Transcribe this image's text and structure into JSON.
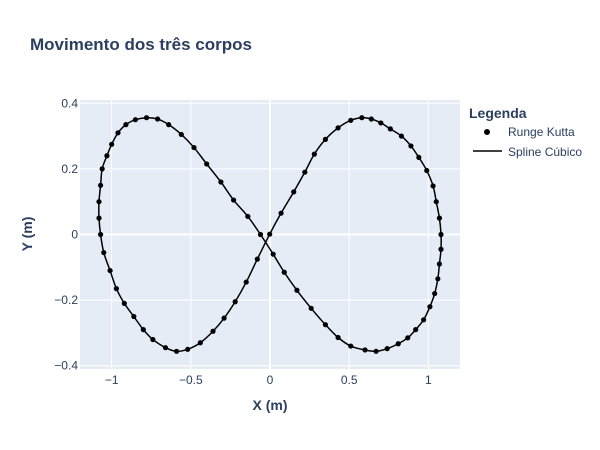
{
  "chart_data": {
    "type": "scatter",
    "title": "Movimento dos três corpos",
    "xlabel": "X (m)",
    "ylabel": "Y (m)",
    "xlim": [
      -1.2,
      1.2
    ],
    "ylim": [
      -0.41,
      0.41
    ],
    "x_ticks": [
      -1,
      -0.5,
      0,
      0.5,
      1
    ],
    "x_tick_labels": [
      "−1",
      "−0.5",
      "0",
      "0.5",
      "1"
    ],
    "y_ticks": [
      -0.4,
      -0.2,
      0,
      0.2,
      0.4
    ],
    "y_tick_labels": [
      "−0.4",
      "−0.2",
      "0",
      "0.2",
      "0.4"
    ],
    "grid": true,
    "legend": {
      "title": "Legenda",
      "placement": "top-right-outside",
      "entries": [
        "Runge Kutta",
        "Spline Cúbico"
      ]
    },
    "colors": {
      "plot_bg": "#e5ecf6",
      "grid": "#ffffff",
      "text": "#2a3f5f",
      "series": "#000000"
    },
    "series": [
      {
        "name": "Runge Kutta",
        "mode": "markers",
        "x": [
          -0.002,
          0.07,
          0.15,
          0.22,
          0.28,
          0.35,
          0.43,
          0.51,
          0.58,
          0.64,
          0.7,
          0.76,
          0.83,
          0.89,
          0.94,
          0.99,
          1.03,
          1.05,
          1.07,
          1.08,
          1.08,
          1.07,
          1.06,
          1.04,
          1.01,
          0.97,
          0.92,
          0.87,
          0.81,
          0.74,
          0.67,
          0.6,
          0.51,
          0.43,
          0.35,
          0.26,
          0.17,
          0.09,
          0.02,
          -0.06,
          -0.14,
          -0.23,
          -0.31,
          -0.4,
          -0.48,
          -0.56,
          -0.64,
          -0.71,
          -0.78,
          -0.85,
          -0.91,
          -0.96,
          -1.0,
          -1.03,
          -1.06,
          -1.07,
          -1.08,
          -1.08,
          -1.07,
          -1.05,
          -1.01,
          -0.97,
          -0.92,
          -0.86,
          -0.8,
          -0.74,
          -0.66,
          -0.59,
          -0.52,
          -0.44,
          -0.36,
          -0.29,
          -0.22,
          -0.15,
          -0.08
        ],
        "y": [
          0.001,
          0.065,
          0.13,
          0.19,
          0.245,
          0.29,
          0.325,
          0.348,
          0.356,
          0.352,
          0.34,
          0.322,
          0.3,
          0.27,
          0.235,
          0.195,
          0.148,
          0.1,
          0.05,
          0.0,
          -0.045,
          -0.09,
          -0.135,
          -0.18,
          -0.22,
          -0.26,
          -0.29,
          -0.315,
          -0.333,
          -0.348,
          -0.356,
          -0.352,
          -0.34,
          -0.314,
          -0.275,
          -0.225,
          -0.17,
          -0.115,
          -0.06,
          0.0,
          0.055,
          0.105,
          0.16,
          0.215,
          0.265,
          0.305,
          0.335,
          0.352,
          0.356,
          0.35,
          0.335,
          0.31,
          0.275,
          0.24,
          0.2,
          0.15,
          0.1,
          0.05,
          0.0,
          -0.055,
          -0.11,
          -0.165,
          -0.21,
          -0.25,
          -0.29,
          -0.32,
          -0.345,
          -0.356,
          -0.35,
          -0.33,
          -0.295,
          -0.255,
          -0.205,
          -0.145,
          -0.075
        ]
      },
      {
        "name": "Spline Cúbico",
        "mode": "lines"
      }
    ]
  }
}
